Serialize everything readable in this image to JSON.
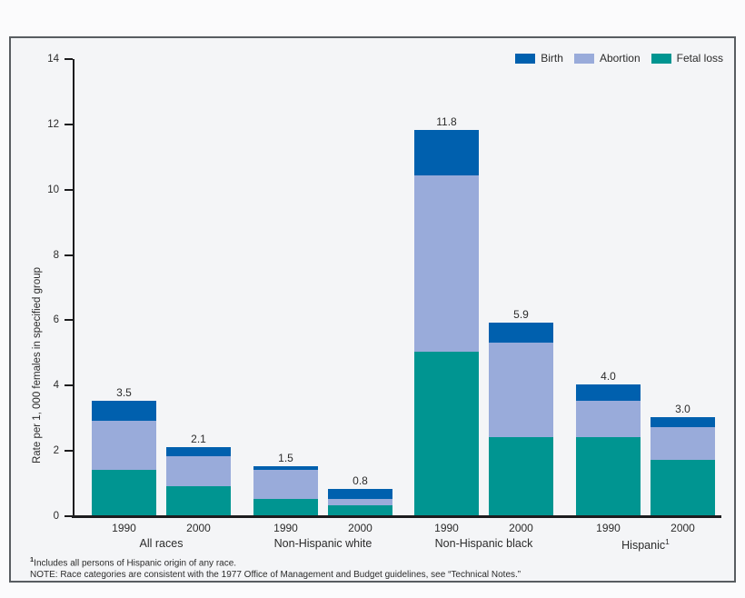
{
  "chart_data": {
    "type": "bar",
    "stacked": true,
    "ylabel": "Rate per 1, 000 females in specified group",
    "ylim": [
      0,
      14
    ],
    "yticks": [
      0,
      2,
      4,
      6,
      8,
      10,
      12,
      14
    ],
    "grid": false,
    "legend_position": "top-right",
    "legend": [
      {
        "key": "birth",
        "label": "Birth",
        "color": "#0060AE"
      },
      {
        "key": "abortion",
        "label": "Abortion",
        "color": "#99ABDA"
      },
      {
        "key": "fetal_loss",
        "label": "Fetal loss",
        "color": "#009591"
      }
    ],
    "stack_order_bottom_to_top": [
      "fetal_loss",
      "abortion",
      "birth"
    ],
    "groups": [
      {
        "label": "All races",
        "bars": [
          {
            "year": "1990",
            "total_label": "3.5",
            "segments": {
              "fetal_loss": 1.4,
              "abortion": 1.5,
              "birth": 0.6
            }
          },
          {
            "year": "2000",
            "total_label": "2.1",
            "segments": {
              "fetal_loss": 0.9,
              "abortion": 0.9,
              "birth": 0.3
            }
          }
        ]
      },
      {
        "label": "Non-Hispanic white",
        "bars": [
          {
            "year": "1990",
            "total_label": "1.5",
            "segments": {
              "fetal_loss": 0.5,
              "abortion": 0.9,
              "birth": 0.1
            }
          },
          {
            "year": "2000",
            "total_label": "0.8",
            "segments": {
              "fetal_loss": 0.3,
              "abortion": 0.2,
              "birth": 0.3
            }
          }
        ]
      },
      {
        "label": "Non-Hispanic black",
        "bars": [
          {
            "year": "1990",
            "total_label": "11.8",
            "segments": {
              "fetal_loss": 5.0,
              "abortion": 5.4,
              "birth": 1.4
            }
          },
          {
            "year": "2000",
            "total_label": "5.9",
            "segments": {
              "fetal_loss": 2.4,
              "abortion": 2.9,
              "birth": 0.6
            }
          }
        ]
      },
      {
        "label": "Hispanic",
        "label_superscript": "1",
        "bars": [
          {
            "year": "1990",
            "total_label": "4.0",
            "segments": {
              "fetal_loss": 2.4,
              "abortion": 1.1,
              "birth": 0.5
            }
          },
          {
            "year": "2000",
            "total_label": "3.0",
            "segments": {
              "fetal_loss": 1.7,
              "abortion": 1.0,
              "birth": 0.3
            }
          }
        ]
      }
    ]
  },
  "footnotes": {
    "line1_superscript": "1",
    "line1": "Includes all persons of Hispanic origin of any race.",
    "line2": "NOTE: Race categories are consistent with the 1977 Office of Management and Budget guidelines, see “Technical Notes.”"
  }
}
